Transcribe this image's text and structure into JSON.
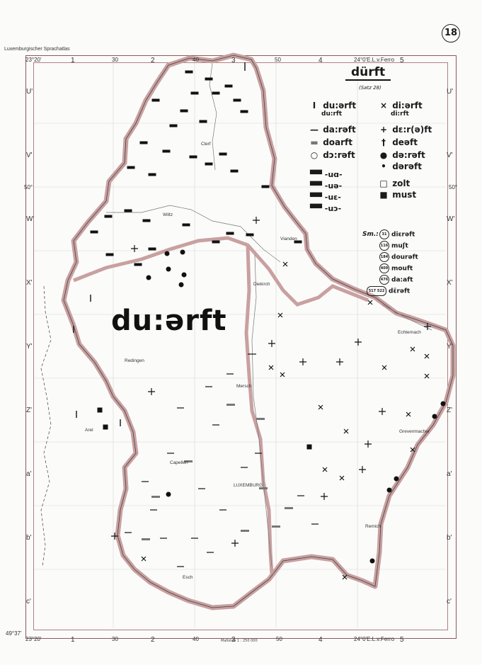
{
  "atlas_title": "Luxemburgischer Sprachatlas",
  "page_number": "18",
  "headword": "dürft",
  "satz_ref": "(Satz 28)",
  "main_form": "du:ərft",
  "legend_left": [
    {
      "symbol": "I",
      "label": "du:ərft",
      "alt": "du:rft"
    },
    {
      "symbol": "—",
      "label": "da:rəft",
      "alt": ""
    },
    {
      "symbol": "▬",
      "label": "doarft",
      "alt": ""
    },
    {
      "symbol": "○",
      "label": "dɔ:rəft",
      "alt": ""
    }
  ],
  "legend_right": [
    {
      "symbol": "×",
      "label": "di:ərft",
      "alt": "di:rft"
    },
    {
      "symbol": "+",
      "label": "dɛ:r(ə)ft",
      "alt": ""
    },
    {
      "symbol": "†",
      "label": "deəft",
      "alt": ""
    },
    {
      "symbol": "●",
      "label": "də:rəft",
      "alt": ""
    },
    {
      "symbol": "•",
      "label": "dərəft",
      "alt": ""
    }
  ],
  "vowel_rows": [
    "-uɑ-",
    "-uə-",
    "-uɛ-",
    "-uɔ-"
  ],
  "extra_forms": [
    {
      "symbol": "□",
      "label": "zolt"
    },
    {
      "symbol": "■",
      "label": "must"
    }
  ],
  "sm_label": "Sm.:",
  "sm_items": [
    {
      "num": "31",
      "form": "diɛrəft"
    },
    {
      "num": "116",
      "form": "muʃt"
    },
    {
      "num": "184",
      "form": "dourəft"
    },
    {
      "num": "409",
      "form": "mouft"
    },
    {
      "num": "476",
      "form": "da:aft"
    },
    {
      "num": "517 522",
      "form": "dɛ̈rəft"
    }
  ],
  "top_ticks": {
    "left": "23°20'",
    "right": "24°0'E.L.v.Ferro",
    "c1": "1",
    "c2": "2",
    "c3": "3",
    "c4": "4",
    "c5": "5",
    "m30a": "30",
    "m30b": "30",
    "m40": "40",
    "m50": "50"
  },
  "bottom_ticks": {
    "left": "49°37'",
    "left2": "23°20'",
    "right": "24°0'E.L.v.Ferro",
    "c1": "1",
    "c2": "2",
    "c3": "3",
    "c4": "4",
    "c5": "5",
    "m30a": "30",
    "m30b": "30",
    "m40": "40",
    "m50": "50"
  },
  "left_labels": [
    "U'",
    "V'",
    "W'",
    "X'",
    "Y'",
    "Z'",
    "a'",
    "b'",
    "c'"
  ],
  "right_labels": [
    "U'",
    "V'",
    "W'",
    "X'",
    "Y'",
    "Z'",
    "a'",
    "b'",
    "c'"
  ],
  "lat_marks": [
    "50°",
    "50°"
  ],
  "places": [
    "Clerf",
    "Wiltz",
    "Vianden",
    "Diekirch",
    "Echternach",
    "Redingen",
    "Mersch",
    "Arel",
    "Grevenmacher",
    "Capellen",
    "LUXEMBURG",
    "Remich",
    "Esch"
  ],
  "scale": "Maßstab 1 : 250 000",
  "colors": {
    "frame": "#8b5a5a",
    "border": "#c9a0a0",
    "ink": "#111111"
  },
  "icons": {
    "line": "dash-mark",
    "bar": "bar-mark",
    "cross": "x-mark",
    "plus": "plus-mark",
    "dot": "dot-mark"
  }
}
